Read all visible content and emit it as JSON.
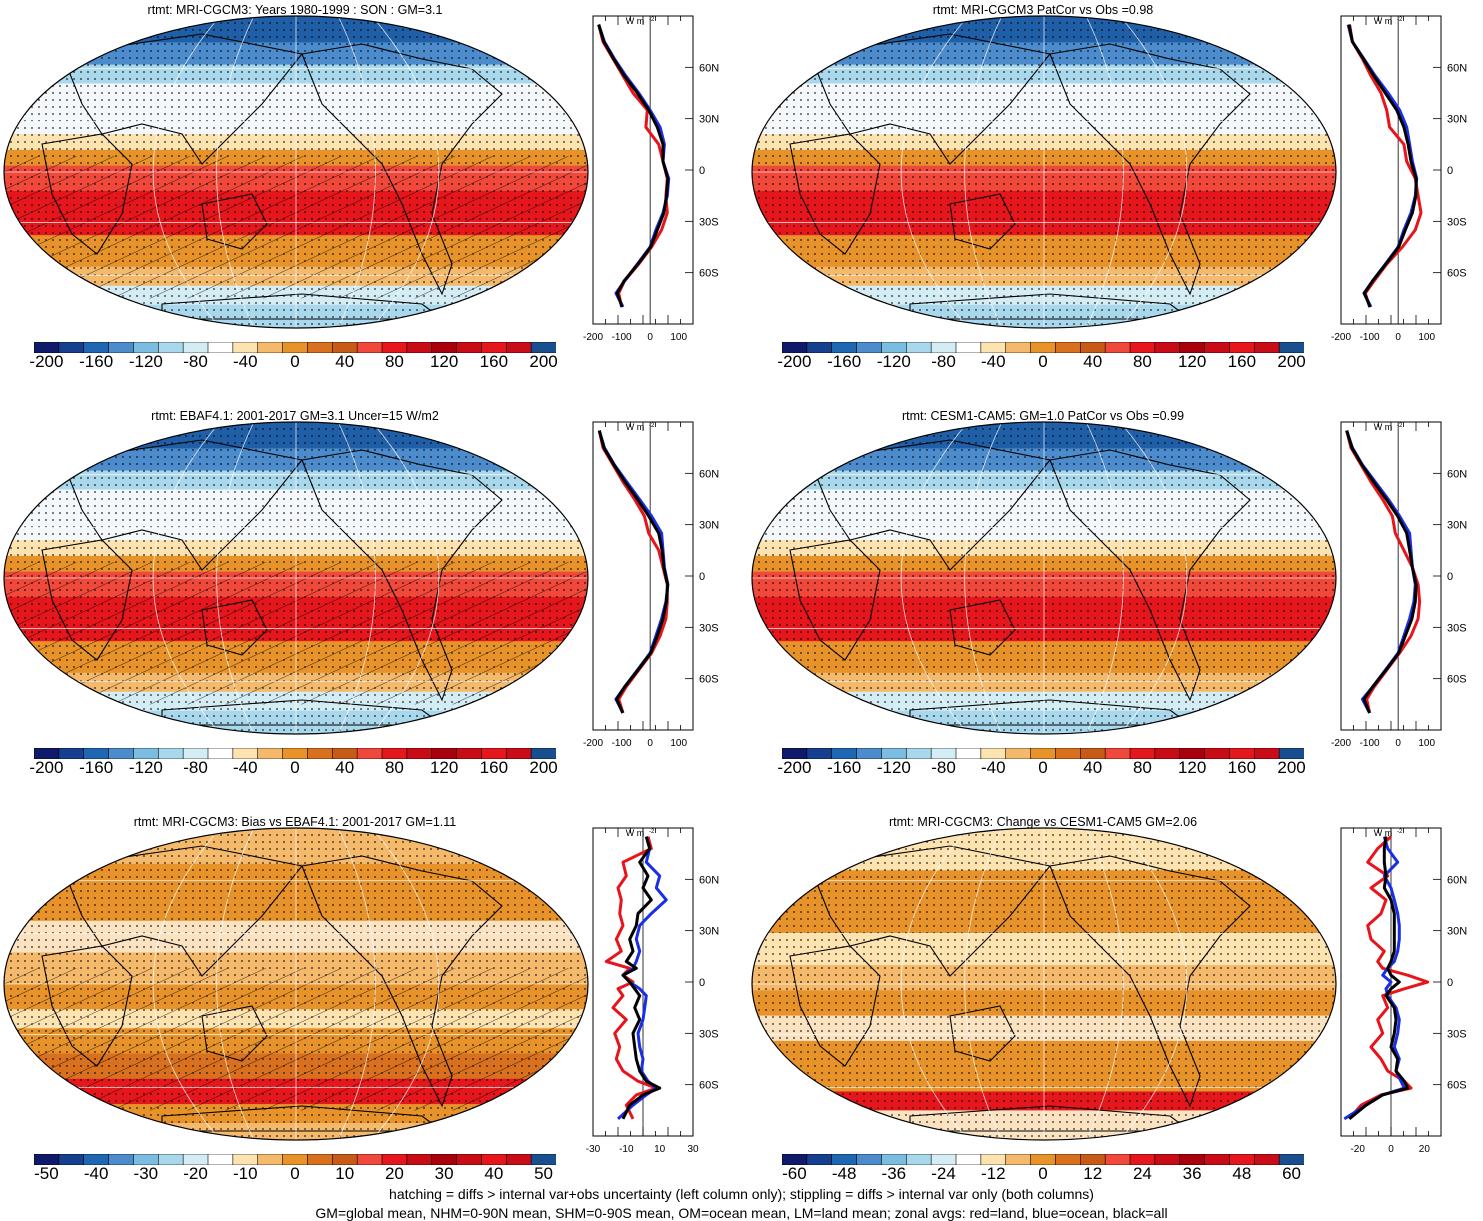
{
  "footer": {
    "line1": "hatching = diffs > internal var+obs uncertainty (left column only); stippling = diffs > internal var only (both columns)",
    "line2": "GM=global mean, NHM=0-90N mean, SHM=0-90S mean, OM=ocean mean, LM=land mean; zonal avgs: red=land, blue=ocean, black=all"
  },
  "colors": {
    "land": "#e8141c",
    "ocean": "#1a2ee8",
    "all": "#000000",
    "palette": [
      "#101a6b",
      "#173f8f",
      "#1f67b3",
      "#4d8ccc",
      "#7bbde0",
      "#a9d8ec",
      "#d4edf5",
      "#ffffff",
      "#fde3b0",
      "#f5b96b",
      "#e8922a",
      "#d9701e",
      "#c85a17",
      "#f0483a",
      "#e5161c",
      "#c90b15",
      "#a8000d",
      "#c90b15",
      "#e5161c",
      "#c80c18",
      "#1a4f8f"
    ]
  },
  "panels": [
    {
      "title": "rtmt: MRI-CGCM3: Years 1980-1999 : SON : GM=3.1",
      "kind": "mean",
      "hatch": true,
      "colorbar_labels": [
        "-200",
        "-160",
        "-120",
        "-80",
        "-40",
        "0",
        "40",
        "80",
        "120",
        "160",
        "200"
      ],
      "zonal_units": "W m",
      "zonal_xticks": [
        "-200",
        "-100",
        "0",
        "100"
      ],
      "zonal_ylabels": [
        "60N",
        "30N",
        "0",
        "30S",
        "60S"
      ],
      "chart_data": {
        "type": "line",
        "xlim": [
          -200,
          150
        ],
        "lat": [
          85,
          75,
          65,
          55,
          45,
          35,
          25,
          15,
          5,
          -5,
          -15,
          -25,
          -35,
          -45,
          -55,
          -65,
          -72,
          -80
        ],
        "series": [
          {
            "name": "land",
            "values": [
              -180,
              -165,
              -130,
              -95,
              -60,
              -10,
              -15,
              30,
              45,
              60,
              55,
              60,
              40,
              5,
              -40,
              -90,
              -110,
              -100
            ]
          },
          {
            "name": "ocean",
            "values": [
              -180,
              -160,
              -125,
              -85,
              -40,
              0,
              35,
              50,
              45,
              65,
              60,
              45,
              20,
              0,
              -45,
              -90,
              -120,
              -95
            ]
          },
          {
            "name": "all",
            "values": [
              -180,
              -162,
              -128,
              -90,
              -45,
              -5,
              25,
              45,
              45,
              62,
              57,
              48,
              25,
              2,
              -43,
              -92,
              -115,
              -98
            ]
          }
        ]
      }
    },
    {
      "title": "rtmt: MRI-CGCM3 PatCor vs Obs =0.98",
      "kind": "mean",
      "hatch": false,
      "colorbar_labels": [
        "-200",
        "-160",
        "-120",
        "-80",
        "-40",
        "0",
        "40",
        "80",
        "120",
        "160",
        "200"
      ],
      "zonal_units": "W m",
      "zonal_xticks": [
        "-200",
        "-100",
        "0",
        "100"
      ],
      "zonal_ylabels": [
        "60N",
        "30N",
        "0",
        "30S",
        "60S"
      ],
      "chart_data": {
        "type": "line",
        "xlim": [
          -200,
          150
        ],
        "lat": [
          85,
          75,
          65,
          55,
          45,
          35,
          25,
          15,
          5,
          -5,
          -15,
          -25,
          -35,
          -45,
          -55,
          -65,
          -72,
          -80
        ],
        "series": [
          {
            "name": "land",
            "values": [
              -170,
              -160,
              -125,
              -95,
              -60,
              -40,
              -30,
              20,
              30,
              60,
              70,
              80,
              60,
              15,
              -40,
              -85,
              -115,
              -100
            ]
          },
          {
            "name": "ocean",
            "values": [
              -175,
              -160,
              -120,
              -80,
              -35,
              5,
              30,
              40,
              50,
              65,
              60,
              45,
              20,
              0,
              -45,
              -90,
              -120,
              -95
            ]
          },
          {
            "name": "all",
            "values": [
              -172,
              -160,
              -122,
              -85,
              -45,
              -5,
              20,
              35,
              45,
              63,
              62,
              50,
              25,
              2,
              -43,
              -90,
              -118,
              -98
            ]
          }
        ]
      }
    },
    {
      "title": "rtmt: EBAF4.1: 2001-2017 GM=3.1 Uncer=15 W/m2",
      "kind": "mean",
      "hatch": true,
      "colorbar_labels": [
        "-200",
        "-160",
        "-120",
        "-80",
        "-40",
        "0",
        "40",
        "80",
        "120",
        "160",
        "200"
      ],
      "zonal_units": "W m",
      "zonal_xticks": [
        "-200",
        "-100",
        "0",
        "100"
      ],
      "zonal_ylabels": [
        "60N",
        "30N",
        "0",
        "30S",
        "60S"
      ],
      "chart_data": {
        "type": "line",
        "xlim": [
          -200,
          150
        ],
        "lat": [
          85,
          75,
          65,
          55,
          45,
          35,
          25,
          15,
          5,
          -5,
          -15,
          -25,
          -35,
          -45,
          -55,
          -65,
          -72,
          -80
        ],
        "series": [
          {
            "name": "land",
            "values": [
              -178,
              -165,
              -130,
              -95,
              -55,
              -20,
              -5,
              30,
              45,
              60,
              60,
              55,
              35,
              5,
              -40,
              -85,
              -110,
              -95
            ]
          },
          {
            "name": "ocean",
            "values": [
              -178,
              -160,
              -125,
              -82,
              -38,
              5,
              40,
              45,
              50,
              62,
              55,
              40,
              20,
              0,
              -45,
              -90,
              -120,
              -95
            ]
          },
          {
            "name": "all",
            "values": [
              -178,
              -162,
              -127,
              -88,
              -45,
              -5,
              30,
              42,
              48,
              61,
              57,
              45,
              25,
              2,
              -43,
              -90,
              -117,
              -96
            ]
          }
        ]
      }
    },
    {
      "title": "rtmt: CESM1-CAM5: GM=1.0 PatCor vs Obs =0.99",
      "kind": "mean",
      "hatch": false,
      "colorbar_labels": [
        "-200",
        "-160",
        "-120",
        "-80",
        "-40",
        "0",
        "40",
        "80",
        "120",
        "160",
        "200"
      ],
      "zonal_units": "W m",
      "zonal_xticks": [
        "-200",
        "-100",
        "0",
        "100"
      ],
      "zonal_ylabels": [
        "60N",
        "30N",
        "0",
        "30S",
        "60S"
      ],
      "chart_data": {
        "type": "line",
        "xlim": [
          -200,
          150
        ],
        "lat": [
          85,
          75,
          65,
          55,
          45,
          35,
          25,
          15,
          5,
          -5,
          -15,
          -25,
          -35,
          -45,
          -55,
          -65,
          -72,
          -80
        ],
        "series": [
          {
            "name": "land",
            "values": [
              -180,
              -165,
              -130,
              -95,
              -55,
              -20,
              -10,
              20,
              50,
              70,
              75,
              70,
              45,
              5,
              -40,
              -85,
              -110,
              -100
            ]
          },
          {
            "name": "ocean",
            "values": [
              -180,
              -160,
              -125,
              -80,
              -35,
              5,
              40,
              45,
              50,
              60,
              55,
              40,
              20,
              0,
              -45,
              -90,
              -125,
              -100
            ]
          },
          {
            "name": "all",
            "values": [
              -180,
              -162,
              -127,
              -86,
              -42,
              -2,
              30,
              40,
              50,
              63,
              60,
              48,
              25,
              2,
              -43,
              -90,
              -120,
              -100
            ]
          }
        ]
      }
    },
    {
      "title": "rtmt: MRI-CGCM3: Bias vs EBAF4.1: 2001-2017  GM=1.11",
      "kind": "bias",
      "hatch": true,
      "colorbar_labels": [
        "-50",
        "-40",
        "-30",
        "-20",
        "-10",
        "0",
        "10",
        "20",
        "30",
        "40",
        "50"
      ],
      "zonal_units": "W m",
      "zonal_xticks": [
        "-30",
        "-10",
        "10",
        "30"
      ],
      "zonal_ylabels": [
        "60N",
        "30N",
        "0",
        "30S",
        "60S"
      ],
      "chart_data": {
        "type": "line",
        "xlim": [
          -30,
          30
        ],
        "lat": [
          85,
          78,
          70,
          62,
          55,
          48,
          40,
          33,
          25,
          18,
          12,
          8,
          4,
          0,
          -4,
          -8,
          -15,
          -22,
          -30,
          -38,
          -45,
          -52,
          -58,
          -62,
          -66,
          -72,
          -80
        ],
        "series": [
          {
            "name": "land",
            "values": [
              3,
              5,
              -12,
              -10,
              -15,
              -13,
              -14,
              -12,
              -16,
              -13,
              -22,
              -8,
              -12,
              -6,
              -15,
              -12,
              -18,
              -10,
              -17,
              -14,
              -16,
              -12,
              -3,
              8,
              -4,
              -10,
              -6
            ]
          },
          {
            "name": "ocean",
            "values": [
              2,
              4,
              2,
              10,
              8,
              14,
              5,
              -2,
              -4,
              -2,
              -4,
              -6,
              -12,
              -8,
              -2,
              2,
              1,
              0,
              -3,
              -2,
              0,
              -1,
              3,
              8,
              2,
              -6,
              -15
            ]
          },
          {
            "name": "all",
            "values": [
              2,
              4,
              -2,
              3,
              0,
              5,
              -3,
              -4,
              -8,
              -6,
              -10,
              -4,
              -12,
              -8,
              -5,
              -2,
              -5,
              -2,
              -6,
              -5,
              -4,
              -2,
              2,
              10,
              0,
              -8,
              -12
            ]
          }
        ]
      }
    },
    {
      "title": "rtmt: MRI-CGCM3: Change vs CESM1-CAM5 GM=2.06",
      "kind": "change",
      "hatch": false,
      "colorbar_labels": [
        "-60",
        "-48",
        "-36",
        "-24",
        "-12",
        "0",
        "12",
        "24",
        "36",
        "48",
        "60"
      ],
      "zonal_units": "W m",
      "zonal_xticks": [
        "-20",
        "0",
        "20"
      ],
      "zonal_ylabels": [
        "60N",
        "30N",
        "0",
        "30S",
        "60S"
      ],
      "chart_data": {
        "type": "line",
        "xlim": [
          -30,
          30
        ],
        "lat": [
          85,
          78,
          70,
          62,
          55,
          48,
          40,
          33,
          25,
          18,
          12,
          8,
          4,
          0,
          -4,
          -8,
          -15,
          -22,
          -30,
          -38,
          -45,
          -52,
          -58,
          -62,
          -66,
          -72,
          -80
        ],
        "series": [
          {
            "name": "land",
            "values": [
              0,
              -8,
              -14,
              -2,
              -12,
              -3,
              -6,
              -14,
              -12,
              -4,
              -8,
              -5,
              10,
              22,
              8,
              -5,
              -2,
              -8,
              -5,
              -12,
              -6,
              -2,
              8,
              12,
              -6,
              -18,
              -25
            ]
          },
          {
            "name": "ocean",
            "values": [
              -4,
              -2,
              4,
              -4,
              0,
              2,
              4,
              5,
              5,
              4,
              2,
              -2,
              -5,
              0,
              -3,
              -2,
              3,
              5,
              4,
              2,
              5,
              3,
              6,
              8,
              -5,
              -15,
              -28
            ]
          },
          {
            "name": "all",
            "values": [
              -3,
              -4,
              -4,
              -3,
              -4,
              0,
              2,
              2,
              2,
              2,
              0,
              -2,
              0,
              5,
              0,
              -3,
              2,
              3,
              2,
              0,
              4,
              3,
              8,
              10,
              -5,
              -15,
              -25
            ]
          }
        ]
      }
    }
  ]
}
